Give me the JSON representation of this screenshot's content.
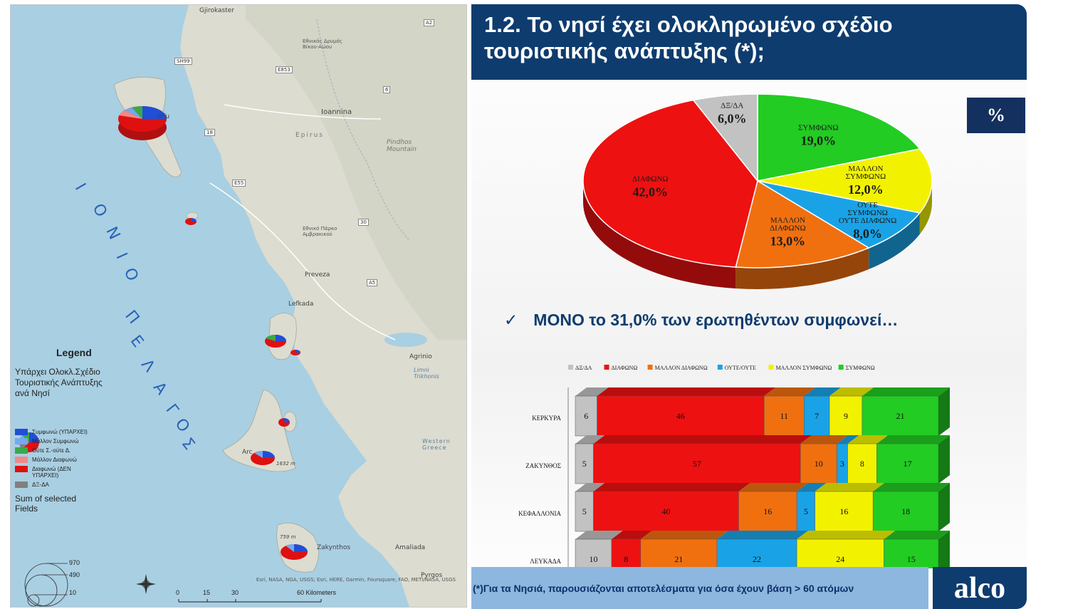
{
  "map": {
    "places": [
      "Gjirokaster",
      "Ioannina",
      "Epirus",
      "Pindhos Mountain",
      "Preveza",
      "Lefkada",
      "Agrinio",
      "Amaliada",
      "Zakynthos",
      "Pyrgos",
      "orfu",
      "Arc",
      "Εθνικός Δρυμός Βίκου-Αώου",
      "Εθνικό Πάρκο Αμβρακικού",
      "Limni Trikhonis",
      "Western Greece",
      "759 m",
      "1632 m"
    ],
    "roads": [
      "A2",
      "SH99",
      "E853",
      "6",
      "18",
      "E55",
      "30",
      "A5"
    ],
    "sea_letters": [
      "Ι",
      "Ο",
      "Ν",
      "Ι",
      "Ο",
      "Π",
      "Ε",
      "Λ",
      "Α",
      "Γ",
      "Ο",
      "Σ"
    ],
    "legend": {
      "title": "Legend",
      "subtitle": "Υπάρχει Ολοκλ.Σχέδιο Τουριστικής Ανάπτυξης ανά Νησί",
      "items": [
        {
          "label": "Συμφωνώ (ΥΠΑΡΧΕΙ)",
          "color": "#1f4fd6"
        },
        {
          "label": "Μάλλον Συμφωνώ",
          "color": "#74a9ec"
        },
        {
          "label": "Ούτε Σ.-ούτε Δ.",
          "color": "#3aa84a"
        },
        {
          "label": "Μάλλον Διαφωνώ",
          "color": "#f08a8a"
        },
        {
          "label": "Διαφωνώ (ΔΕΝ ΥΠΑΡΧΕΙ)",
          "color": "#e01010"
        },
        {
          "label": "ΔΞ-ΔΑ",
          "color": "#808080"
        }
      ],
      "sum_label": "Sum of selected Fields",
      "sum_values": [
        "970",
        "490",
        "10"
      ]
    },
    "scale": {
      "ticks": [
        "0",
        "15",
        "30",
        "60 Kilometers"
      ]
    },
    "attribution": "Esri, NASA, NGA, USGS; Esri, HERE, Garmin, Foursquare, FAO, METI/NASA, USGS"
  },
  "slide": {
    "title": "1.2. Το νησί έχει ολοκληρωμένο σχέδιο τουριστικής ανάπτυξης (*);",
    "percent_badge": "%",
    "highlight": "ΜΟΝΟ το 31,0% των ερωτηθέντων συμφωνεί…",
    "check": "✓",
    "footnote": "(*)Για τα Νησιά, παρουσιάζονται αποτελέσματα για όσα έχουν βάση > 60 ατόμων",
    "logo": "alco"
  },
  "chart_data": [
    {
      "type": "pie",
      "slices": [
        {
          "label": "ΣΥΜΦΩΝΩ",
          "display": "19,0%",
          "value": 19.0,
          "color": "#22cc22"
        },
        {
          "label": "ΜΑΛΛΟΝ ΣΥΜΦΩΝΩ",
          "display": "12,0%",
          "value": 12.0,
          "color": "#f2f200"
        },
        {
          "label": "ΟΥΤΕ ΣΥΜΦΩΝΩ ΟΥΤΕ ΔΙΑΦΩΝΩ",
          "display": "8,0%",
          "value": 8.0,
          "color": "#19a3e6"
        },
        {
          "label": "ΜΑΛΛΟΝ ΔΙΑΦΩΝΩ",
          "display": "13,0%",
          "value": 13.0,
          "color": "#f07010"
        },
        {
          "label": "ΔΙΑΦΩΝΩ",
          "display": "42,0%",
          "value": 42.0,
          "color": "#ee1111"
        },
        {
          "label": "ΔΞ/ΔΑ",
          "display": "6,0%",
          "value": 6.0,
          "color": "#c2c2c2"
        }
      ]
    },
    {
      "type": "bar",
      "stacked": true,
      "orientation": "horizontal",
      "categories": [
        "ΚΕΡΚΥΡΑ",
        "ΖΑΚΥΝΘΟΣ",
        "ΚΕΦΑΛΛΟΝΙΑ",
        "ΛΕΥΚΑΔΑ"
      ],
      "series": [
        {
          "name": "ΔΞ/ΔΑ",
          "color": "#c2c2c2",
          "values": [
            6,
            5,
            5,
            10
          ]
        },
        {
          "name": "ΔΙΑΦΩΝΩ",
          "color": "#ee1111",
          "values": [
            46,
            57,
            40,
            8
          ]
        },
        {
          "name": "ΜΑΛΛΟΝ ΔΙΑΦΩΝΩ",
          "color": "#f07010",
          "values": [
            11,
            10,
            16,
            21
          ]
        },
        {
          "name": "ΟΥΤΕ/ΟΥΤΕ",
          "color": "#19a3e6",
          "values": [
            7,
            3,
            5,
            22
          ]
        },
        {
          "name": "ΜΑΛΛΟΝ ΣΥΜΦΩΝΩ",
          "color": "#f2f200",
          "values": [
            9,
            8,
            16,
            24
          ]
        },
        {
          "name": "ΣΥΜΦΩΝΩ",
          "color": "#22cc22",
          "values": [
            21,
            17,
            18,
            15
          ]
        }
      ],
      "legend": "top"
    }
  ]
}
